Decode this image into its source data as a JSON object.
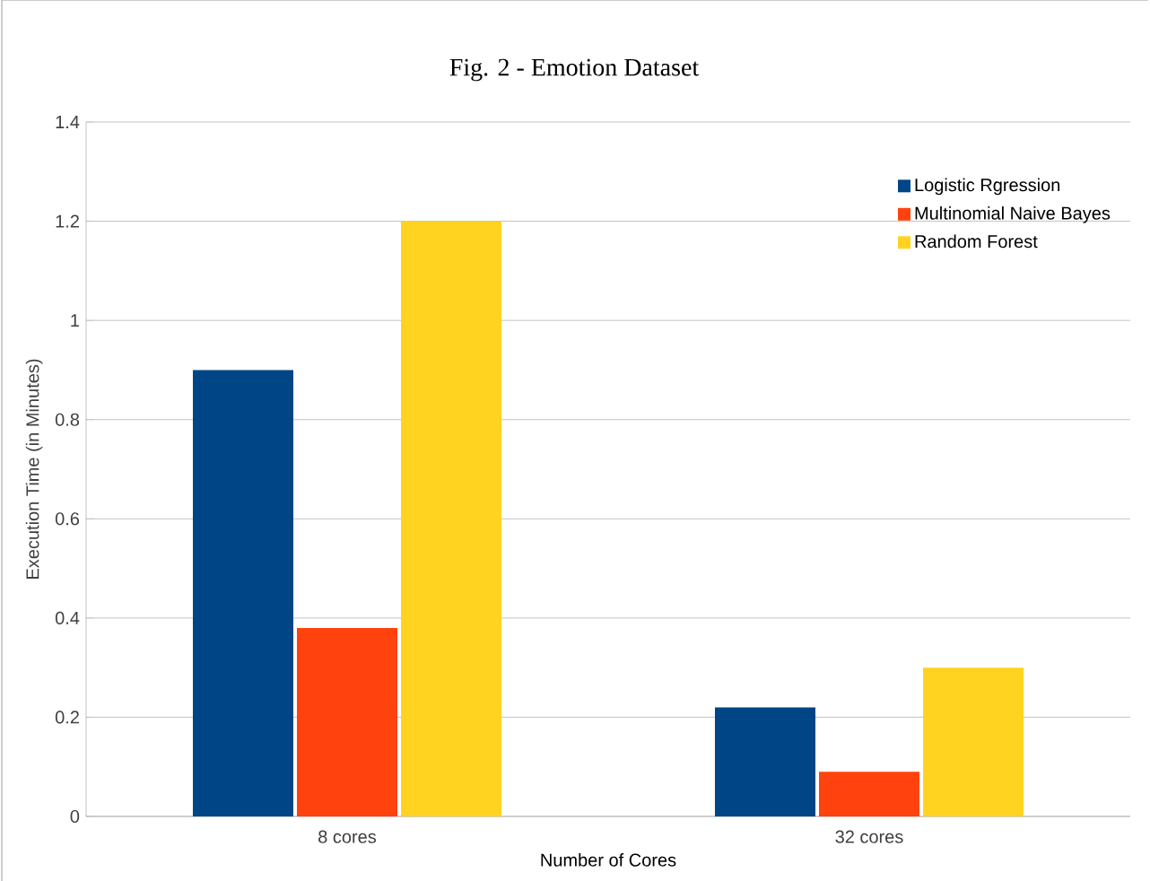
{
  "chart_data": {
    "type": "bar",
    "title": "Fig. 2 - Emotion Dataset",
    "xlabel": "Number of Cores",
    "ylabel": "Execution Time (in Minutes)",
    "categories": [
      "8 cores",
      "32 cores"
    ],
    "series": [
      {
        "name": "Logistic Rgression",
        "color": "#004586",
        "values": [
          0.9,
          0.22
        ]
      },
      {
        "name": "Multinomial Naive Bayes",
        "color": "#ff420e",
        "values": [
          0.38,
          0.09
        ]
      },
      {
        "name": "Random Forest",
        "color": "#ffd320",
        "values": [
          1.2,
          0.3
        ]
      }
    ],
    "ylim": [
      0,
      1.4
    ],
    "yticks": [
      0,
      0.2,
      0.4,
      0.6,
      0.8,
      1,
      1.2,
      1.4
    ],
    "grid": "y",
    "legend": "top right"
  }
}
